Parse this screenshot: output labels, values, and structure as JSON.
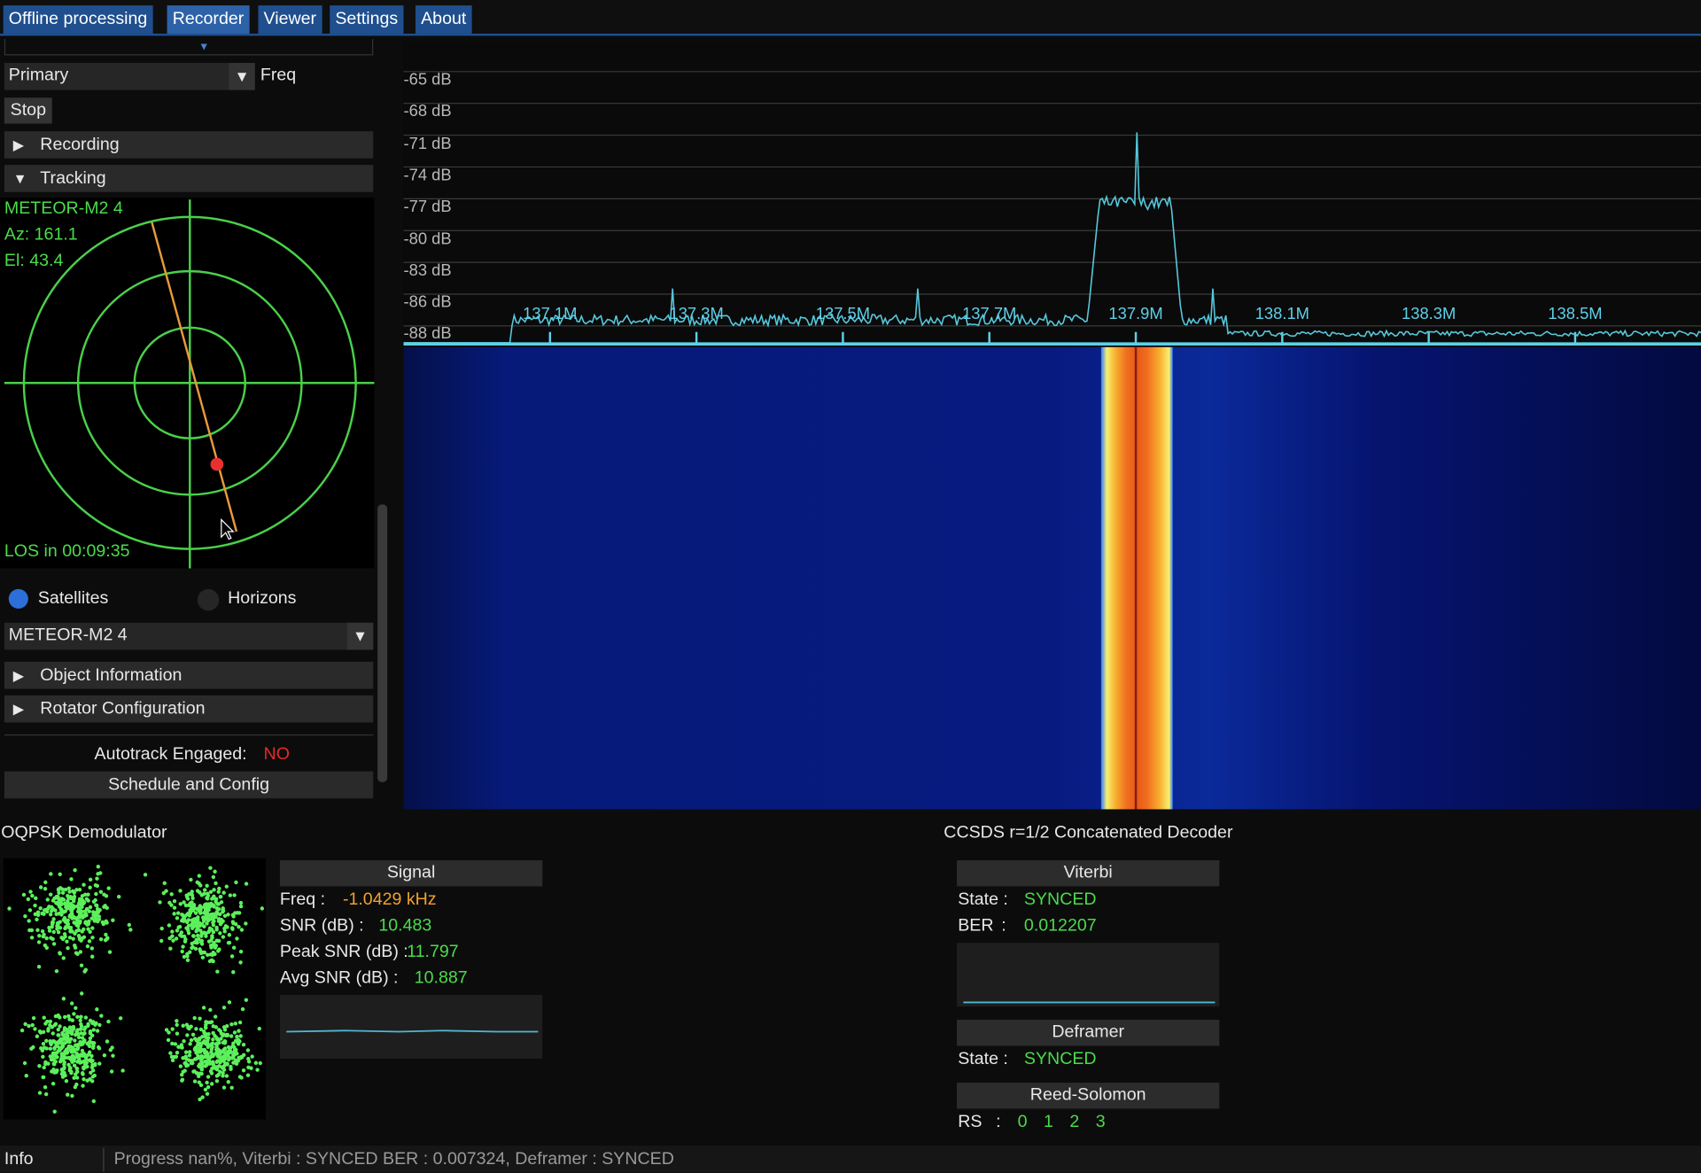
{
  "tabs": [
    "Offline processing",
    "Recorder",
    "Viewer",
    "Settings",
    "About"
  ],
  "left": {
    "source": "Primary",
    "mode": "Freq",
    "stop": "Stop",
    "recording": "Recording",
    "tracking": "Tracking",
    "tracking_info": {
      "satellite": "METEOR-M2 4",
      "azimuth": "Az: 161.1",
      "elevation": "El: 43.4",
      "los": "LOS in 00:09:35"
    },
    "radio": [
      "Satellites",
      "Horizons"
    ],
    "selected_object": "METEOR-M2 4",
    "object_information": "Object Information",
    "rotator_configuration": "Rotator Configuration",
    "autotrack_label": "Autotrack Engaged:",
    "autotrack_value": "NO",
    "schedule": "Schedule and Config"
  },
  "spectrum": {
    "db_labels": [
      "-65 dB",
      "-68 dB",
      "-71 dB",
      "-74 dB",
      "-77 dB",
      "-80 dB",
      "-83 dB",
      "-86 dB",
      "-88 dB"
    ],
    "freq_labels": [
      "137.1M",
      "137.3M",
      "137.5M",
      "137.7M",
      "137.9M",
      "138.1M",
      "138.3M",
      "138.5M"
    ]
  },
  "demodulator": {
    "title": "OQPSK Demodulator",
    "signal_header": "Signal",
    "rows": [
      {
        "label": "Freq :",
        "value": "-1.0429 kHz"
      },
      {
        "label": "SNR (dB) :",
        "value": "10.483"
      },
      {
        "label": "Peak SNR (dB) :",
        "value": "11.797"
      },
      {
        "label": "Avg SNR (dB) :",
        "value": "10.887"
      }
    ]
  },
  "decoder": {
    "title": "CCSDS r=1/2 Concatenated Decoder",
    "viterbi": {
      "header": "Viterbi",
      "state_label": "State :",
      "state": "SYNCED",
      "ber_label": "BER",
      "ber_sep": ":",
      "ber": "0.012207"
    },
    "deframer": {
      "header": "Deframer",
      "state_label": "State :",
      "state": "SYNCED"
    },
    "reed_solomon": {
      "header": "Reed-Solomon",
      "label": "RS",
      "sep": ":",
      "codes": [
        "0",
        "1",
        "2",
        "3"
      ]
    }
  },
  "status": {
    "label": "Info",
    "text": "Progress nan%, Viterbi : SYNCED BER : 0.007324, Deframer : SYNCED"
  }
}
